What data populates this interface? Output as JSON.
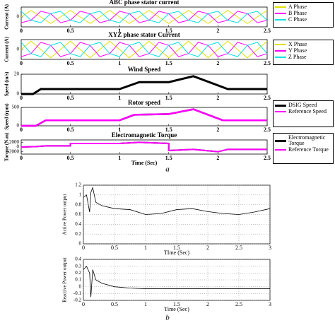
{
  "chart_data": [
    {
      "type": "line",
      "title": "ABC phase stator current",
      "ylabel": "Current (A)",
      "x": [
        0,
        0.1,
        0.2,
        0.3,
        0.4,
        0.5,
        0.6,
        0.7,
        0.8,
        0.9,
        1,
        1.1,
        1.2,
        1.3,
        1.4,
        1.5,
        1.6,
        1.7,
        1.8,
        1.9,
        2,
        2.1,
        2.2,
        2.3,
        2.4,
        2.5
      ],
      "series": [
        {
          "name": "A Phase",
          "color": "#e0e000",
          "values": [
            0,
            1,
            0,
            -1,
            0,
            1,
            0,
            -1,
            0,
            1,
            0,
            -1,
            0,
            1,
            0,
            -1,
            0,
            1,
            0,
            -1,
            0,
            1,
            0,
            -1,
            0,
            1
          ]
        },
        {
          "name": "B Phase",
          "color": "#ff00ff",
          "values": [
            -0.87,
            -0.5,
            0.87,
            0.5,
            -0.87,
            -0.5,
            0.87,
            0.5,
            -0.87,
            -0.5,
            0.87,
            0.5,
            -0.87,
            -0.5,
            0.87,
            0.5,
            -0.87,
            -0.5,
            0.87,
            0.5,
            -0.87,
            -0.5,
            0.87,
            0.5,
            -0.87,
            -0.5
          ]
        },
        {
          "name": "C Phase",
          "color": "#00e0e0",
          "values": [
            0.87,
            -0.5,
            -0.87,
            0.5,
            0.87,
            -0.5,
            -0.87,
            0.5,
            0.87,
            -0.5,
            -0.87,
            0.5,
            0.87,
            -0.5,
            -0.87,
            0.5,
            0.87,
            -0.5,
            -0.87,
            0.5,
            0.87,
            -0.5,
            -0.87,
            0.5,
            0.87,
            -0.5
          ]
        }
      ],
      "xlim": [
        0,
        2.5
      ],
      "xticks": [
        0,
        0.5,
        1,
        1.5,
        2,
        2.5
      ],
      "ylim": [
        -1.5,
        1.5
      ],
      "yticks": [
        0
      ],
      "legend": true,
      "grid": false
    },
    {
      "type": "line",
      "title": "XYZ phase stator Current",
      "ylabel": "Current (A)",
      "x": [
        0,
        0.1,
        0.2,
        0.3,
        0.4,
        0.5,
        0.6,
        0.7,
        0.8,
        0.9,
        1,
        1.1,
        1.2,
        1.3,
        1.4,
        1.5,
        1.6,
        1.7,
        1.8,
        1.9,
        2,
        2.1,
        2.2,
        2.3,
        2.4,
        2.5
      ],
      "series": [
        {
          "name": "X Phase",
          "color": "#e0e000",
          "values": [
            0,
            1,
            0,
            -1,
            0,
            1,
            0,
            -1,
            0,
            1,
            0,
            -1,
            0,
            1,
            0,
            -1,
            0,
            1,
            0,
            -1,
            0,
            1,
            0,
            -1,
            0,
            1
          ]
        },
        {
          "name": "Y Phase",
          "color": "#ff00ff",
          "values": [
            -0.87,
            -0.5,
            0.87,
            0.5,
            -0.87,
            -0.5,
            0.87,
            0.5,
            -0.87,
            -0.5,
            0.87,
            0.5,
            -0.87,
            -0.5,
            0.87,
            0.5,
            -0.87,
            -0.5,
            0.87,
            0.5,
            -0.87,
            -0.5,
            0.87,
            0.5,
            -0.87,
            -0.5
          ]
        },
        {
          "name": "Z Phase",
          "color": "#00e0e0",
          "values": [
            0.87,
            -0.5,
            -0.87,
            0.5,
            0.87,
            -0.5,
            -0.87,
            0.5,
            0.87,
            -0.5,
            -0.87,
            0.5,
            0.87,
            -0.5,
            -0.87,
            0.5,
            0.87,
            -0.5,
            -0.87,
            0.5,
            0.87,
            -0.5,
            -0.87,
            0.5,
            0.87,
            -0.5
          ]
        }
      ],
      "xlim": [
        0,
        2.5
      ],
      "xticks": [
        0,
        0.5,
        1,
        1.5,
        2,
        2.5
      ],
      "ylim": [
        -1.2,
        1.2
      ],
      "yticks": [
        0
      ],
      "legend": true,
      "grid": false
    },
    {
      "type": "line",
      "title": "Wind Speed",
      "ylabel": "Speed (m/s)",
      "x": [
        0,
        0.12,
        0.2,
        1.0,
        1.2,
        1.5,
        1.75,
        2.1,
        2.5
      ],
      "series": [
        {
          "color": "#000000",
          "values": [
            0,
            0,
            5,
            5,
            12,
            12,
            18,
            5,
            5
          ]
        }
      ],
      "xlim": [
        0,
        2.5
      ],
      "xticks": [
        0,
        0.5,
        1,
        1.5,
        2,
        2.5
      ],
      "ylim": [
        0,
        20
      ],
      "yticks": [
        0,
        20
      ],
      "legend": false,
      "grid": false
    },
    {
      "type": "line",
      "title": "Rotor speed",
      "ylabel": "Speed (rpm)",
      "x": [
        0,
        0.15,
        0.25,
        1.0,
        1.15,
        1.5,
        1.75,
        2.05,
        2.5
      ],
      "series": [
        {
          "name": "DSIG Speed",
          "color": "#000000",
          "values": [
            0,
            0,
            150,
            150,
            300,
            320,
            450,
            150,
            150
          ]
        },
        {
          "name": "Reference Speed",
          "color": "#ff00ff",
          "values": [
            0,
            0,
            150,
            150,
            300,
            320,
            450,
            150,
            150
          ]
        }
      ],
      "xlim": [
        0,
        2.5
      ],
      "xticks": [
        0,
        0.5,
        1,
        1.5,
        2,
        2.5
      ],
      "ylim": [
        0,
        500
      ],
      "yticks": [
        0,
        500
      ],
      "legend": true,
      "grid": false
    },
    {
      "type": "line",
      "title": "Electromagnetic Torque",
      "ylabel": "Torque (N.m)",
      "xlabel": "Time (Sec)",
      "x": [
        0,
        0.15,
        0.25,
        0.5,
        0.5,
        1.0,
        1.2,
        1.5,
        1.5,
        1.75,
        2.0,
        2.1,
        2.5
      ],
      "series": [
        {
          "name": "Electromagnetic Torque",
          "color": "#000000",
          "values": [
            0,
            200,
            500,
            500,
            1500,
            1500,
            2000,
            1500,
            -1500,
            -1000,
            -2000,
            -1000,
            -1000
          ]
        },
        {
          "name": "Reference Torque",
          "color": "#ff00ff",
          "values": [
            0,
            200,
            500,
            500,
            1500,
            1500,
            2000,
            1500,
            -1500,
            -1000,
            -2000,
            -1000,
            -1000
          ]
        }
      ],
      "xlim": [
        0,
        2.5
      ],
      "xticks": [
        0,
        0.5,
        1,
        1.5,
        2,
        2.5
      ],
      "ylim": [
        -3000,
        3000
      ],
      "yticks": [
        -2000,
        0,
        2000
      ],
      "legend": true,
      "grid": false
    },
    {
      "type": "line",
      "ylabel": "Active Power output",
      "xlabel": "TIme (Sec)",
      "x": [
        0,
        0.05,
        0.1,
        0.12,
        0.15,
        0.2,
        0.3,
        0.5,
        0.75,
        1,
        1.25,
        1.5,
        1.75,
        2,
        2.25,
        2.5,
        2.75,
        3
      ],
      "series": [
        {
          "color": "#000000",
          "values": [
            0.95,
            1.0,
            0.65,
            1.05,
            1.15,
            0.85,
            0.78,
            0.72,
            0.7,
            0.6,
            0.62,
            0.7,
            0.72,
            0.66,
            0.62,
            0.6,
            0.65,
            0.72
          ]
        }
      ],
      "xlim": [
        0,
        3
      ],
      "xticks": [
        0,
        0.5,
        1,
        1.5,
        2,
        2.5,
        3
      ],
      "ylim": [
        0,
        1.2
      ],
      "yticks": [
        0,
        0.2,
        0.4,
        0.6,
        0.8,
        1,
        1.2
      ],
      "legend": false,
      "grid": true
    },
    {
      "type": "line",
      "ylabel": "Reactive Power output",
      "xlabel": "Time (Sec)",
      "x": [
        0,
        0.05,
        0.1,
        0.12,
        0.15,
        0.2,
        0.3,
        0.5,
        0.75,
        1,
        1.5,
        2,
        2.5,
        3
      ],
      "series": [
        {
          "color": "#000000",
          "values": [
            0.25,
            0.3,
            0.2,
            -0.15,
            0.25,
            0.1,
            0.05,
            0.0,
            -0.02,
            -0.03,
            -0.03,
            -0.03,
            -0.03,
            -0.03
          ]
        }
      ],
      "xlim": [
        0,
        3
      ],
      "xticks": [
        0,
        0.5,
        1,
        1.5,
        2,
        2.5,
        3
      ],
      "ylim": [
        -0.2,
        0.4
      ],
      "yticks": [
        -0.2,
        -0.1,
        0,
        0.1,
        0.2,
        0.3,
        0.4
      ],
      "legend": false,
      "grid": true
    }
  ],
  "labels": [
    "a",
    "b"
  ]
}
